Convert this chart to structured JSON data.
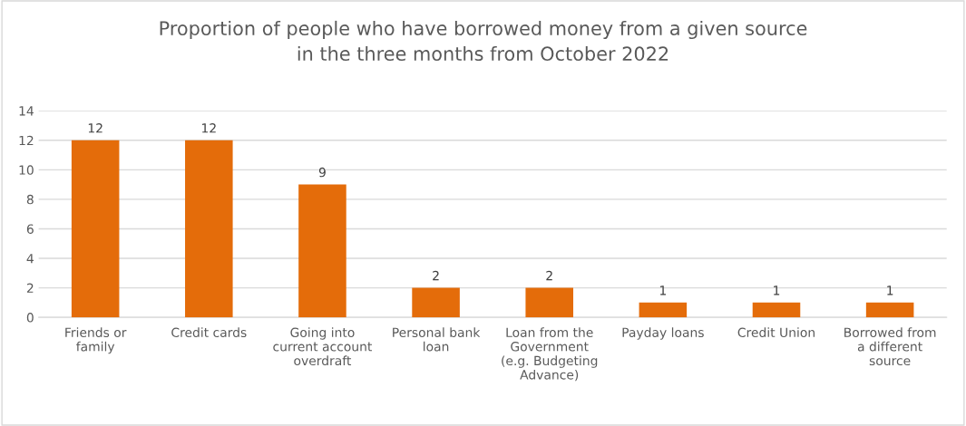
{
  "chart_data": {
    "type": "bar",
    "title": "Proportion of people who have borrowed money from a given source\nin the three months from October 2022",
    "categories": [
      "Friends or\nfamily",
      "Credit cards",
      "Going into\ncurrent account\noverdraft",
      "Personal bank\nloan",
      "Loan from the\nGovernment\n(e.g. Budgeting\nAdvance)",
      "Payday loans",
      "Credit Union",
      "Borrowed from\na different\nsource"
    ],
    "values": [
      12,
      12,
      9,
      2,
      2,
      1,
      1,
      1
    ],
    "color": "#e46c0a",
    "ylim": [
      0,
      14
    ],
    "yticks": [
      0,
      2,
      4,
      6,
      8,
      10,
      12,
      14
    ],
    "grid": "y",
    "data_labels": true
  }
}
